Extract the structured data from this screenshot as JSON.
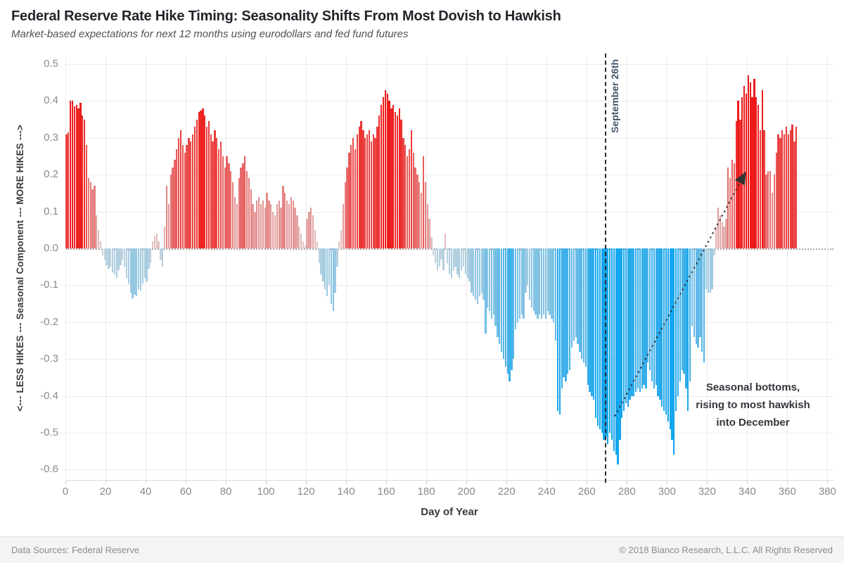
{
  "header": {
    "title": "Federal Reserve Rate Hike Timing: Seasonality Shifts From Most Dovish to Hawkish",
    "subtitle": "Market-based expectations for next 12 months using eurodollars and fed fund futures"
  },
  "chart_data": {
    "type": "bar",
    "title": "Federal Reserve Rate Hike Timing: Seasonality Shifts From Most Dovish to Hawkish",
    "subtitle": "Market-based expectations for next 12 months using eurodollars and fed fund futures",
    "xlabel": "Day of Year",
    "ylabel": "<--- LESS HIKES --- Seasonal Component --- MORE HIKES --->",
    "xlim": [
      0,
      380
    ],
    "ylim": [
      -0.6,
      0.5
    ],
    "x_ticks": [
      0,
      20,
      40,
      60,
      80,
      100,
      120,
      140,
      160,
      180,
      200,
      220,
      240,
      260,
      280,
      300,
      320,
      340,
      360,
      380
    ],
    "y_ticks": [
      0.5,
      0.4,
      0.3,
      0.2,
      0.1,
      0.0,
      -0.1,
      -0.2,
      -0.3,
      -0.4,
      -0.5,
      -0.6
    ],
    "grid": true,
    "legend": "none",
    "color_scale": {
      "positive_strong": "#ee1a1a",
      "positive_faint": "#e0cdcd",
      "negative_strong": "#14a6ee",
      "negative_faint": "#cbd5dd",
      "note": "bar color intensity scales with |value|"
    },
    "reference_line": {
      "x": 269,
      "label": "September 26th",
      "style": "dashed"
    },
    "annotation": {
      "lines": [
        "Seasonal bottoms,",
        "rising to most hawkish",
        "into December"
      ],
      "arrow": {
        "from": {
          "x": 274,
          "y": -0.455
        },
        "to": {
          "x": 339,
          "y": 0.205
        }
      }
    },
    "series": [
      {
        "name": "Seasonal Component",
        "x_start": 0,
        "x_step": 1,
        "values": [
          0.31,
          0.315,
          0.4,
          0.4,
          0.385,
          0.39,
          0.38,
          0.395,
          0.36,
          0.35,
          0.28,
          0.19,
          0.18,
          0.16,
          0.17,
          0.09,
          0.05,
          0.02,
          -0.02,
          -0.03,
          -0.045,
          -0.055,
          -0.05,
          -0.065,
          -0.07,
          -0.08,
          -0.06,
          -0.045,
          -0.03,
          -0.05,
          -0.08,
          -0.095,
          -0.12,
          -0.135,
          -0.125,
          -0.13,
          -0.11,
          -0.115,
          -0.095,
          -0.08,
          -0.09,
          -0.055,
          -0.04,
          0.02,
          0.035,
          0.04,
          0.02,
          -0.03,
          -0.05,
          0.06,
          0.17,
          0.12,
          0.2,
          0.22,
          0.24,
          0.27,
          0.3,
          0.32,
          0.28,
          0.26,
          0.28,
          0.3,
          0.29,
          0.31,
          0.33,
          0.35,
          0.37,
          0.375,
          0.38,
          0.36,
          0.33,
          0.345,
          0.31,
          0.29,
          0.32,
          0.3,
          0.27,
          0.29,
          0.25,
          0.22,
          0.25,
          0.23,
          0.21,
          0.18,
          0.14,
          0.12,
          0.19,
          0.22,
          0.23,
          0.25,
          0.21,
          0.19,
          0.16,
          0.12,
          0.1,
          0.13,
          0.14,
          0.12,
          0.13,
          0.11,
          0.15,
          0.13,
          0.12,
          0.1,
          0.09,
          0.12,
          0.13,
          0.11,
          0.17,
          0.15,
          0.13,
          0.12,
          0.14,
          0.13,
          0.11,
          0.09,
          0.06,
          0.04,
          0.02,
          0.01,
          0.08,
          0.1,
          0.11,
          0.09,
          0.05,
          0.02,
          -0.04,
          -0.07,
          -0.09,
          -0.11,
          -0.13,
          -0.1,
          -0.15,
          -0.17,
          -0.12,
          -0.05,
          0.02,
          0.05,
          0.12,
          0.18,
          0.22,
          0.26,
          0.28,
          0.3,
          0.27,
          0.31,
          0.33,
          0.345,
          0.32,
          0.3,
          0.31,
          0.32,
          0.29,
          0.31,
          0.3,
          0.33,
          0.36,
          0.39,
          0.41,
          0.43,
          0.42,
          0.4,
          0.38,
          0.39,
          0.37,
          0.36,
          0.38,
          0.35,
          0.3,
          0.28,
          0.25,
          0.27,
          0.32,
          0.26,
          0.22,
          0.2,
          0.18,
          0.15,
          0.25,
          0.18,
          0.12,
          0.08,
          0.03,
          -0.02,
          -0.04,
          -0.06,
          -0.05,
          -0.03,
          -0.06,
          0.04,
          -0.04,
          -0.07,
          -0.08,
          -0.06,
          -0.05,
          -0.07,
          -0.08,
          -0.06,
          -0.05,
          -0.07,
          -0.08,
          -0.09,
          -0.12,
          -0.13,
          -0.14,
          -0.15,
          -0.13,
          -0.12,
          -0.14,
          -0.23,
          -0.16,
          -0.17,
          -0.19,
          -0.18,
          -0.21,
          -0.24,
          -0.26,
          -0.28,
          -0.3,
          -0.32,
          -0.34,
          -0.36,
          -0.33,
          -0.3,
          -0.22,
          -0.2,
          -0.19,
          -0.18,
          -0.19,
          -0.12,
          -0.1,
          -0.14,
          -0.16,
          -0.17,
          -0.18,
          -0.19,
          -0.18,
          -0.19,
          -0.18,
          -0.19,
          -0.17,
          -0.18,
          -0.19,
          -0.2,
          -0.25,
          -0.44,
          -0.45,
          -0.38,
          -0.35,
          -0.36,
          -0.34,
          -0.33,
          -0.27,
          -0.25,
          -0.24,
          -0.26,
          -0.28,
          -0.3,
          -0.31,
          -0.32,
          -0.37,
          -0.39,
          -0.4,
          -0.41,
          -0.46,
          -0.48,
          -0.49,
          -0.5,
          -0.52,
          -0.51,
          -0.53,
          -0.5,
          -0.52,
          -0.55,
          -0.56,
          -0.585,
          -0.52,
          -0.46,
          -0.44,
          -0.42,
          -0.43,
          -0.41,
          -0.4,
          -0.4,
          -0.39,
          -0.38,
          -0.39,
          -0.38,
          -0.37,
          -0.38,
          -0.31,
          -0.33,
          -0.36,
          -0.38,
          -0.37,
          -0.4,
          -0.41,
          -0.43,
          -0.44,
          -0.45,
          -0.47,
          -0.49,
          -0.52,
          -0.56,
          -0.44,
          -0.4,
          -0.36,
          -0.33,
          -0.34,
          -0.38,
          -0.44,
          -0.36,
          -0.21,
          -0.24,
          -0.26,
          -0.27,
          -0.24,
          -0.28,
          -0.31,
          -0.11,
          -0.12,
          -0.12,
          -0.11,
          -0.02,
          0.06,
          0.11,
          0.09,
          0.07,
          0.06,
          0.08,
          0.22,
          0.19,
          0.24,
          0.23,
          0.345,
          0.4,
          0.35,
          0.41,
          0.44,
          0.42,
          0.47,
          0.45,
          0.41,
          0.46,
          0.41,
          0.39,
          0.32,
          0.43,
          0.32,
          0.2,
          0.21,
          0.21,
          0.15,
          0.2,
          0.26,
          0.31,
          0.3,
          0.32,
          0.31,
          0.33,
          0.31,
          0.32,
          0.335,
          0.29,
          0.33
        ]
      }
    ]
  },
  "footer": {
    "source": "Data Sources: Federal Reserve",
    "copyright": "© 2018 Bianco Research, L.L.C. All Rights Reserved"
  }
}
